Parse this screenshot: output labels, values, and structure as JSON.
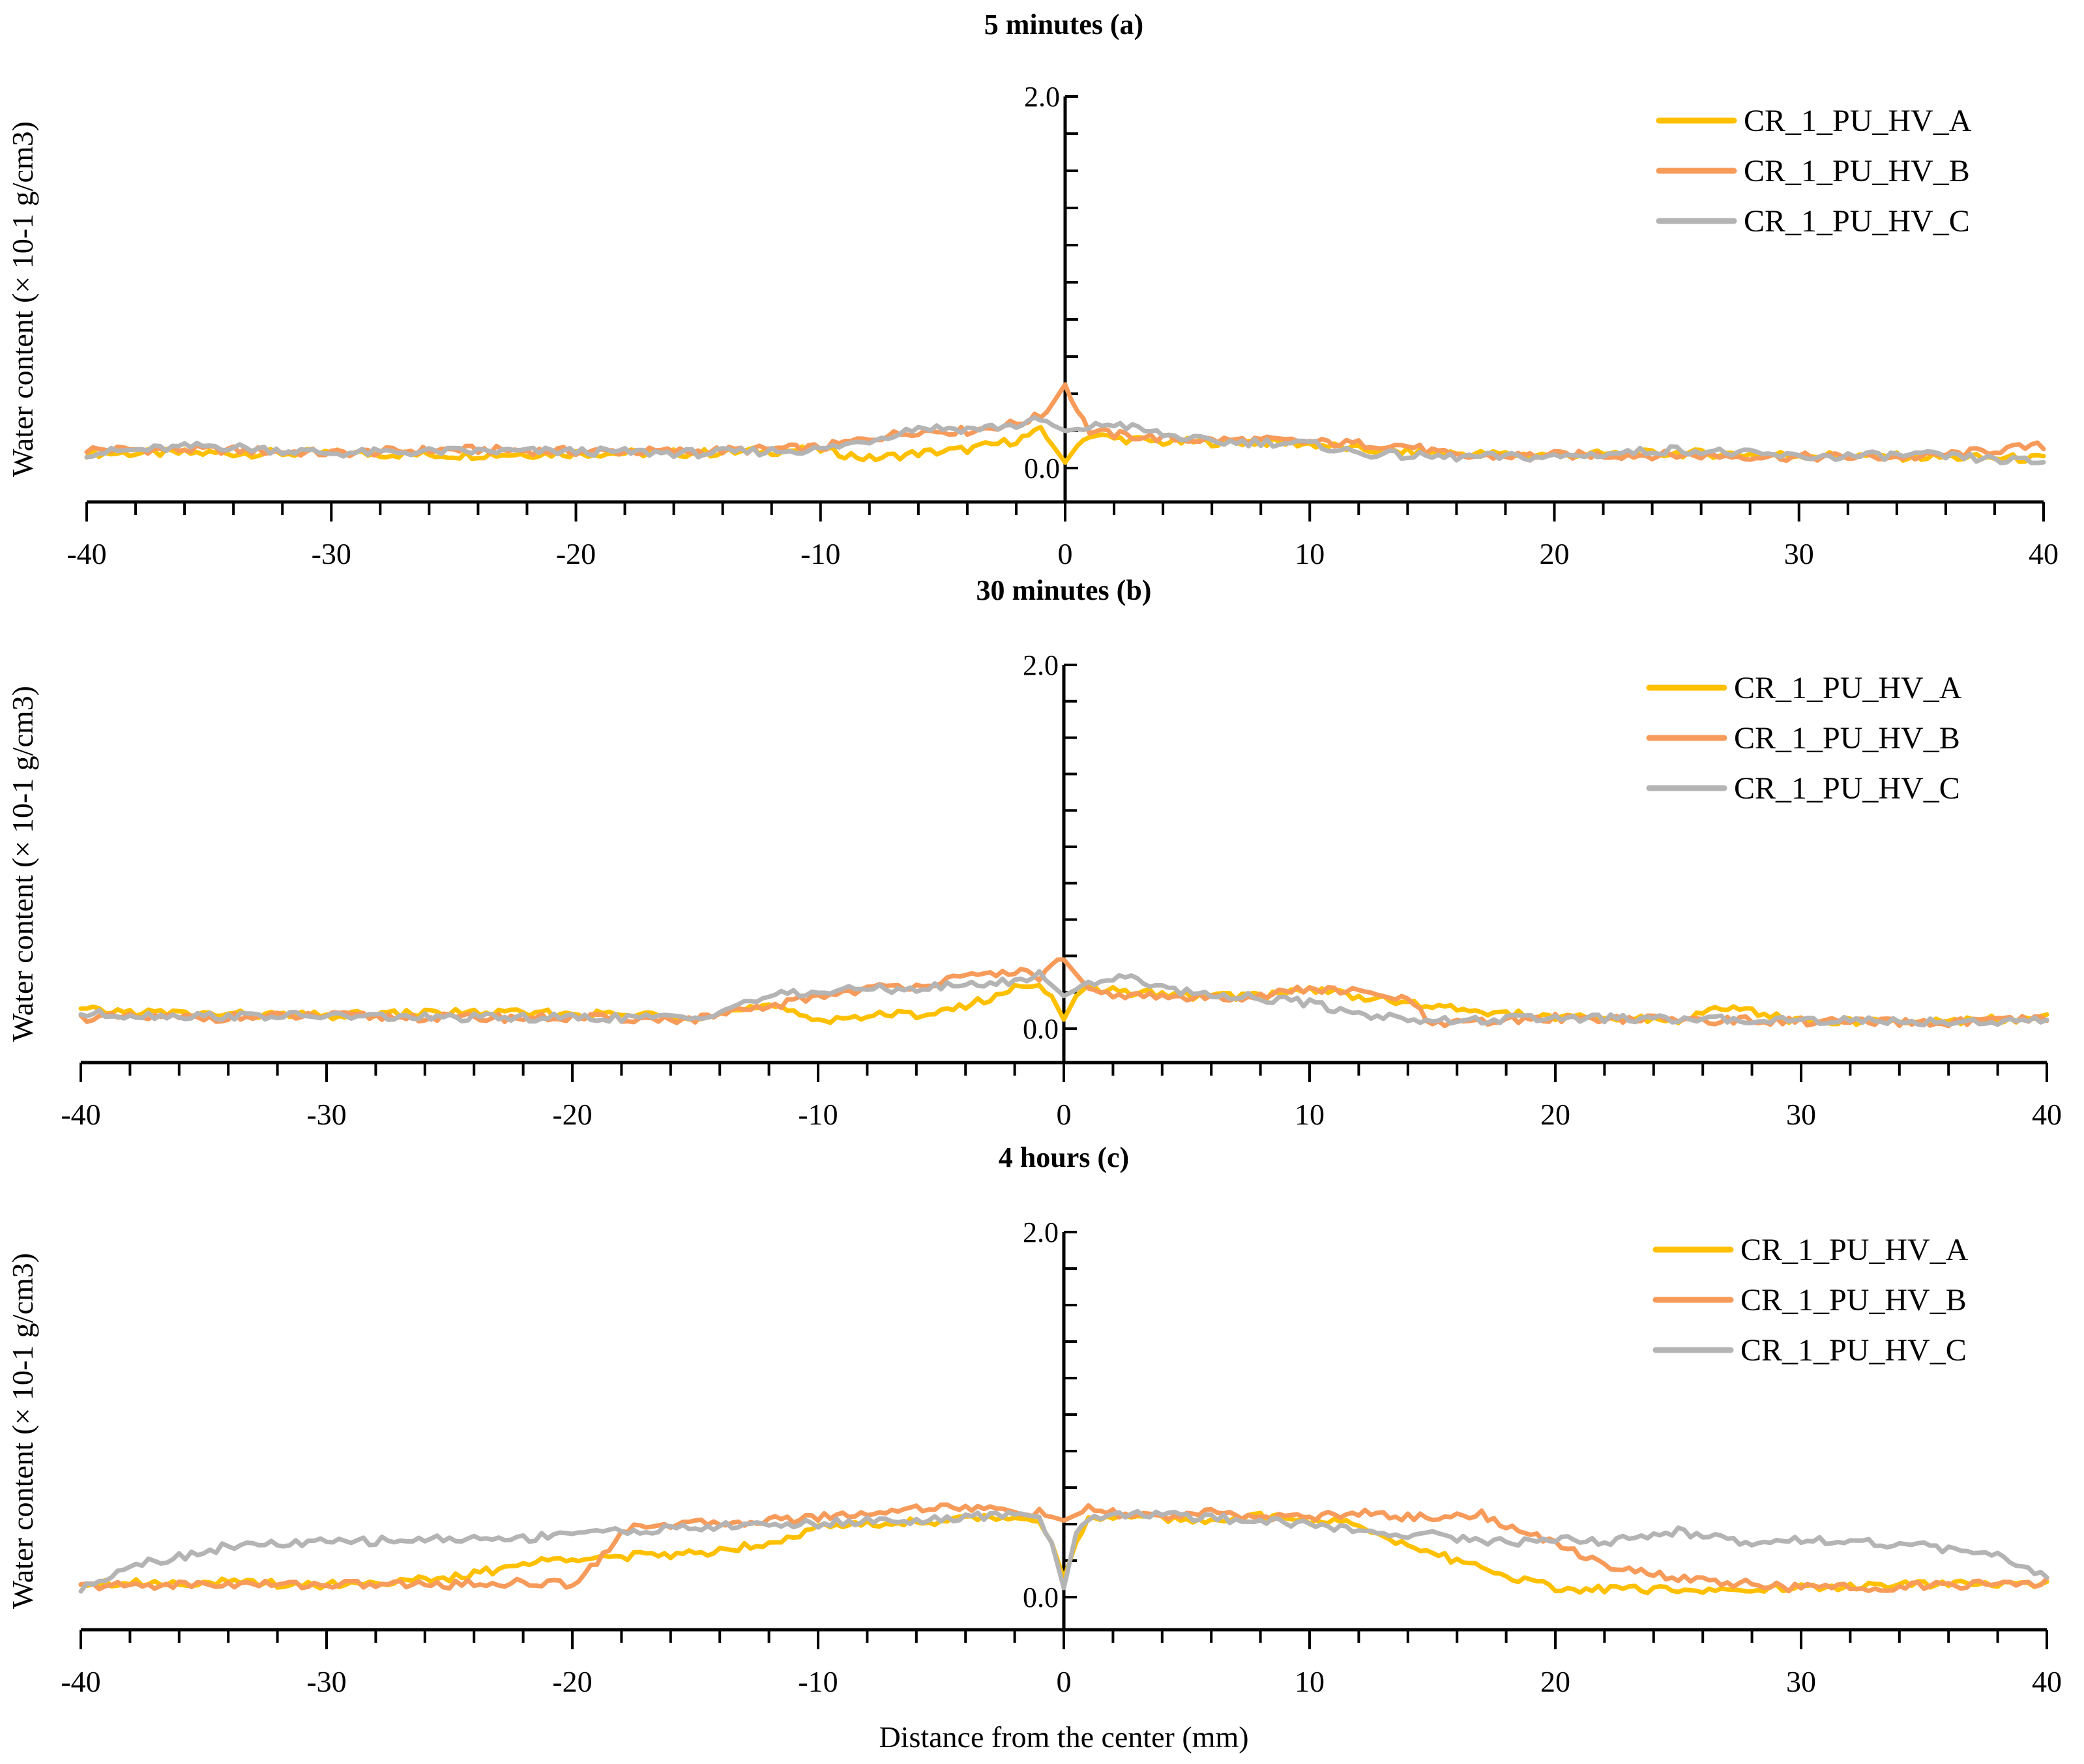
{
  "figure": {
    "xlabel": "Distance from the center (mm)"
  },
  "colors": {
    "A": "#ffc000",
    "B": "#f79b5b",
    "C": "#b4b4b4"
  },
  "chart_data": [
    {
      "type": "line",
      "title": "5 minutes (a)",
      "xlabel": "",
      "ylabel": "Water content (× 10-1 g/cm3)",
      "xlim": [
        -40,
        40
      ],
      "ylim": [
        0.0,
        2.0
      ],
      "xticks": [
        "-40",
        "-30",
        "-20",
        "-10",
        "0",
        "10",
        "20",
        "30",
        "40"
      ],
      "yticks": [
        "0.0",
        "2.0"
      ],
      "legend": "top-right",
      "series": [
        {
          "name": "CR_1_PU_HV_A",
          "x": [
            -40,
            -35,
            -30,
            -25,
            -20,
            -15,
            -10,
            -8,
            -6,
            -4,
            -2,
            -1,
            -0.5,
            0,
            0.5,
            1,
            2,
            4,
            6,
            8,
            10,
            12,
            15,
            20,
            25,
            30,
            35,
            40
          ],
          "y": [
            0.08,
            0.08,
            0.08,
            0.07,
            0.08,
            0.08,
            0.1,
            0.05,
            0.08,
            0.1,
            0.15,
            0.2,
            0.12,
            0.03,
            0.12,
            0.18,
            0.16,
            0.14,
            0.14,
            0.14,
            0.13,
            0.1,
            0.08,
            0.07,
            0.08,
            0.07,
            0.06,
            0.05
          ]
        },
        {
          "name": "CR_1_PU_HV_B",
          "x": [
            -40,
            -35,
            -30,
            -25,
            -20,
            -15,
            -10,
            -8,
            -6,
            -4,
            -2,
            -1,
            -0.5,
            0,
            0.3,
            1,
            2,
            4,
            6,
            8,
            10,
            12,
            14,
            16,
            20,
            25,
            30,
            35,
            40
          ],
          "y": [
            0.1,
            0.1,
            0.08,
            0.1,
            0.09,
            0.09,
            0.11,
            0.16,
            0.2,
            0.2,
            0.24,
            0.28,
            0.35,
            0.45,
            0.35,
            0.2,
            0.18,
            0.16,
            0.15,
            0.15,
            0.14,
            0.13,
            0.12,
            0.06,
            0.07,
            0.07,
            0.06,
            0.06,
            0.12
          ]
        },
        {
          "name": "CR_1_PU_HV_C",
          "x": [
            -40,
            -35,
            -30,
            -25,
            -20,
            -15,
            -10,
            -8,
            -6,
            -4,
            -2,
            -1,
            0,
            1,
            2,
            4,
            6,
            8,
            10,
            12,
            15,
            20,
            25,
            30,
            35,
            40
          ],
          "y": [
            0.08,
            0.12,
            0.08,
            0.09,
            0.09,
            0.08,
            0.1,
            0.15,
            0.22,
            0.21,
            0.23,
            0.26,
            0.2,
            0.22,
            0.24,
            0.18,
            0.14,
            0.14,
            0.13,
            0.08,
            0.06,
            0.06,
            0.1,
            0.06,
            0.07,
            0.03
          ]
        }
      ]
    },
    {
      "type": "line",
      "title": "30 minutes (b)",
      "xlabel": "",
      "ylabel": "Water content (× 10-1 g/cm3)",
      "xlim": [
        -40,
        40
      ],
      "ylim": [
        0.0,
        2.0
      ],
      "xticks": [
        "-40",
        "-30",
        "-20",
        "-10",
        "0",
        "10",
        "20",
        "30",
        "40"
      ],
      "yticks": [
        "0.0",
        "2.0"
      ],
      "legend": "top-right",
      "series": [
        {
          "name": "CR_1_PU_HV_A",
          "x": [
            -40,
            -35,
            -30,
            -25,
            -20,
            -15,
            -12,
            -10,
            -8,
            -6,
            -4,
            -2,
            -1,
            -0.5,
            0,
            0.5,
            1,
            3,
            5,
            8,
            10,
            12,
            15,
            20,
            25,
            27,
            30,
            35,
            40
          ],
          "y": [
            0.1,
            0.08,
            0.07,
            0.09,
            0.08,
            0.07,
            0.12,
            0.05,
            0.07,
            0.08,
            0.12,
            0.22,
            0.26,
            0.18,
            0.05,
            0.18,
            0.22,
            0.2,
            0.18,
            0.18,
            0.22,
            0.18,
            0.12,
            0.06,
            0.05,
            0.12,
            0.04,
            0.04,
            0.06
          ]
        },
        {
          "name": "CR_1_PU_HV_B",
          "x": [
            -40,
            -35,
            -30,
            -25,
            -20,
            -15,
            -12,
            -10,
            -8,
            -6,
            -4,
            -2,
            -1,
            -0.3,
            0,
            0.5,
            1,
            3,
            5,
            8,
            10,
            12,
            14,
            15,
            20,
            25,
            30,
            35,
            40
          ],
          "y": [
            0.06,
            0.06,
            0.07,
            0.06,
            0.06,
            0.05,
            0.12,
            0.18,
            0.22,
            0.24,
            0.28,
            0.32,
            0.28,
            0.38,
            0.38,
            0.3,
            0.2,
            0.18,
            0.17,
            0.18,
            0.22,
            0.2,
            0.16,
            0.02,
            0.06,
            0.05,
            0.04,
            0.03,
            0.05
          ]
        },
        {
          "name": "CR_1_PU_HV_C",
          "x": [
            -40,
            -35,
            -30,
            -25,
            -20,
            -15,
            -12,
            -10,
            -8,
            -6,
            -4,
            -2,
            -1,
            0,
            1,
            2,
            3,
            5,
            8,
            10,
            12,
            14,
            15,
            20,
            25,
            30,
            35,
            40
          ],
          "y": [
            0.08,
            0.07,
            0.07,
            0.06,
            0.06,
            0.06,
            0.18,
            0.2,
            0.22,
            0.22,
            0.24,
            0.26,
            0.3,
            0.18,
            0.25,
            0.28,
            0.27,
            0.2,
            0.17,
            0.14,
            0.08,
            0.06,
            0.04,
            0.06,
            0.05,
            0.05,
            0.04,
            0.04
          ]
        }
      ]
    },
    {
      "type": "line",
      "title": "4 hours (c)",
      "xlabel": "Distance from the center (mm)",
      "ylabel": "Water content (× 10-1 g/cm3)",
      "xlim": [
        -40,
        40
      ],
      "ylim": [
        0.0,
        2.0
      ],
      "xticks": [
        "-40",
        "-30",
        "-20",
        "-10",
        "0",
        "10",
        "20",
        "30",
        "40"
      ],
      "yticks": [
        "0.0",
        "2.0"
      ],
      "legend": "top-right",
      "series": [
        {
          "name": "CR_1_PU_HV_A",
          "x": [
            -40,
            -35,
            -30,
            -25,
            -22,
            -20,
            -18,
            -15,
            -12,
            -10,
            -8,
            -5,
            -2,
            -1,
            -0.5,
            0,
            0.5,
            1,
            3,
            5,
            8,
            10,
            12,
            14,
            16,
            18,
            20,
            22,
            25,
            30,
            35,
            40
          ],
          "y": [
            0.08,
            0.08,
            0.07,
            0.1,
            0.18,
            0.22,
            0.22,
            0.24,
            0.3,
            0.38,
            0.4,
            0.42,
            0.44,
            0.42,
            0.3,
            0.1,
            0.3,
            0.42,
            0.44,
            0.42,
            0.44,
            0.42,
            0.4,
            0.28,
            0.2,
            0.12,
            0.05,
            0.04,
            0.04,
            0.05,
            0.07,
            0.07
          ]
        },
        {
          "name": "CR_1_PU_HV_B",
          "x": [
            -40,
            -35,
            -30,
            -25,
            -22,
            -20,
            -19,
            -18,
            -17,
            -15,
            -12,
            -10,
            -8,
            -5,
            -3,
            -1,
            0,
            1,
            2,
            4,
            6,
            8,
            10,
            12,
            14,
            16,
            17,
            18,
            20,
            22,
            25,
            30,
            35,
            40
          ],
          "y": [
            0.06,
            0.07,
            0.07,
            0.07,
            0.08,
            0.07,
            0.2,
            0.35,
            0.4,
            0.4,
            0.42,
            0.44,
            0.46,
            0.5,
            0.48,
            0.46,
            0.42,
            0.48,
            0.46,
            0.44,
            0.46,
            0.44,
            0.44,
            0.46,
            0.44,
            0.44,
            0.46,
            0.38,
            0.3,
            0.18,
            0.1,
            0.05,
            0.06,
            0.08
          ]
        },
        {
          "name": "CR_1_PU_HV_C",
          "x": [
            -40,
            -38,
            -36,
            -34,
            -30,
            -25,
            -22,
            -20,
            -18,
            -15,
            -12,
            -10,
            -8,
            -5,
            -2,
            -1,
            -0.5,
            0,
            0.5,
            1,
            3,
            5,
            8,
            10,
            12,
            15,
            18,
            20,
            22,
            25,
            28,
            30,
            35,
            38,
            40
          ],
          "y": [
            0.04,
            0.18,
            0.22,
            0.28,
            0.3,
            0.32,
            0.32,
            0.36,
            0.36,
            0.38,
            0.4,
            0.4,
            0.42,
            0.42,
            0.46,
            0.44,
            0.3,
            0.05,
            0.35,
            0.44,
            0.46,
            0.44,
            0.42,
            0.4,
            0.36,
            0.34,
            0.3,
            0.32,
            0.3,
            0.36,
            0.3,
            0.32,
            0.28,
            0.22,
            0.12
          ]
        }
      ]
    }
  ]
}
